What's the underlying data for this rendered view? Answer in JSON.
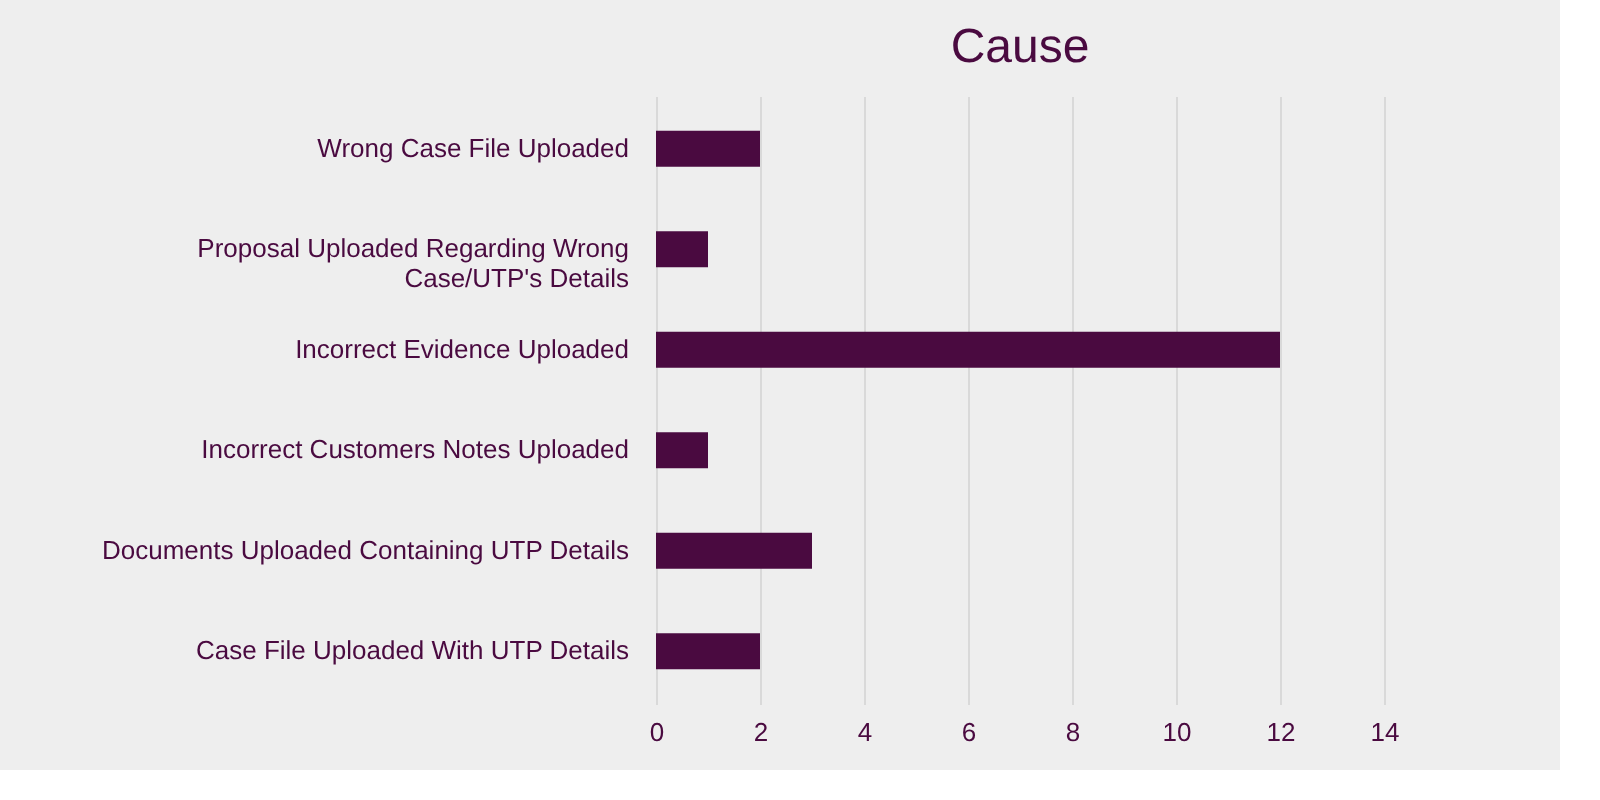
{
  "chart_data": {
    "type": "bar",
    "orientation": "horizontal",
    "title": "Cause",
    "categories": [
      "Wrong Case File Uploaded",
      "Proposal Uploaded Regarding Wrong Case/UTP's Details",
      "Incorrect Evidence Uploaded",
      "Incorrect Customers Notes Uploaded",
      "Documents Uploaded Containing UTP Details",
      "Case File Uploaded With UTP Details"
    ],
    "values": [
      2,
      1,
      12,
      1,
      3,
      2
    ],
    "color": "#4a0a40",
    "xlim": [
      0,
      14
    ],
    "xticks": [
      0,
      2,
      4,
      6,
      8,
      10,
      12,
      14
    ],
    "grid": "x"
  }
}
